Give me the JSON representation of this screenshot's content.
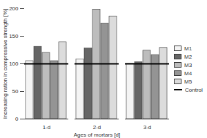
{
  "chart_data": {
    "type": "bar",
    "x_label": "Ages of mortars [d]",
    "y_label": "Increasing ration in compressive strength [%]",
    "categories": [
      "1-d",
      "2-d",
      "3-d"
    ],
    "series": [
      {
        "name": "M1",
        "color": "#f4f4f4",
        "values": [
          105,
          108,
          100
        ]
      },
      {
        "name": "M2",
        "color": "#666666",
        "values": [
          131,
          128,
          103
        ]
      },
      {
        "name": "M3",
        "color": "#bdbdbd",
        "values": [
          120,
          198,
          124
        ]
      },
      {
        "name": "M4",
        "color": "#949494",
        "values": [
          105,
          173,
          116
        ]
      },
      {
        "name": "M5",
        "color": "#dcdcdc",
        "values": [
          139,
          186,
          129
        ]
      },
      {
        "name": "Control",
        "type": "line",
        "color": "#000000",
        "values": [
          100,
          100,
          100
        ]
      }
    ],
    "ylim": [
      0,
      200
    ],
    "yticks": [
      0,
      50,
      100,
      150,
      200
    ],
    "legend": "right"
  }
}
